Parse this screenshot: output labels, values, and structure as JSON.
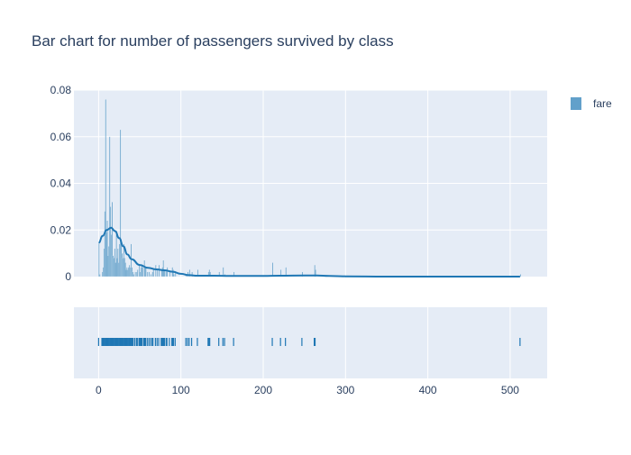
{
  "chart_data": {
    "type": "histogram",
    "title": "Bar chart for number of passengers survived by class",
    "xlabel": "",
    "ylabel": "",
    "legend": {
      "position": "top-right",
      "entries": [
        "fare"
      ]
    },
    "grid": true,
    "xlim": [
      -30,
      545
    ],
    "ylim": [
      0,
      0.08
    ],
    "x_ticks": [
      0,
      100,
      200,
      300,
      400,
      500
    ],
    "y_ticks": [
      0,
      0.02,
      0.04,
      0.06,
      0.08
    ],
    "y_tick_labels": [
      "0",
      "0.02",
      "0.04",
      "0.06",
      "0.08"
    ],
    "series": [
      {
        "name": "fare",
        "kind": "histogram",
        "color": "#1f77b4",
        "bin_width": 1,
        "bins": [
          [
            0,
            0.014
          ],
          [
            1,
            0.001
          ],
          [
            4,
            0.002
          ],
          [
            5,
            0.004
          ],
          [
            6,
            0.012
          ],
          [
            7,
            0.028
          ],
          [
            8,
            0.076
          ],
          [
            9,
            0.019
          ],
          [
            10,
            0.024
          ],
          [
            11,
            0.009
          ],
          [
            12,
            0.013
          ],
          [
            13,
            0.06
          ],
          [
            14,
            0.03
          ],
          [
            15,
            0.018
          ],
          [
            16,
            0.032
          ],
          [
            17,
            0.009
          ],
          [
            18,
            0.008
          ],
          [
            19,
            0.012
          ],
          [
            20,
            0.006
          ],
          [
            21,
            0.018
          ],
          [
            22,
            0.008
          ],
          [
            23,
            0.012
          ],
          [
            24,
            0.006
          ],
          [
            25,
            0.014
          ],
          [
            26,
            0.063
          ],
          [
            27,
            0.016
          ],
          [
            28,
            0.01
          ],
          [
            29,
            0.008
          ],
          [
            30,
            0.014
          ],
          [
            31,
            0.008
          ],
          [
            32,
            0.006
          ],
          [
            33,
            0.003
          ],
          [
            34,
            0.004
          ],
          [
            35,
            0.003
          ],
          [
            36,
            0.004
          ],
          [
            37,
            0.005
          ],
          [
            38,
            0.004
          ],
          [
            39,
            0.014
          ],
          [
            40,
            0.004
          ],
          [
            41,
            0.002
          ],
          [
            42,
            0.001
          ],
          [
            44,
            0.002
          ],
          [
            46,
            0.002
          ],
          [
            47,
            0.003
          ],
          [
            49,
            0.005
          ],
          [
            50,
            0.002
          ],
          [
            51,
            0.004
          ],
          [
            52,
            0.005
          ],
          [
            53,
            0.004
          ],
          [
            55,
            0.007
          ],
          [
            56,
            0.004
          ],
          [
            57,
            0.004
          ],
          [
            59,
            0.002
          ],
          [
            61,
            0.002
          ],
          [
            63,
            0.001
          ],
          [
            65,
            0.002
          ],
          [
            66,
            0.003
          ],
          [
            69,
            0.005
          ],
          [
            71,
            0.003
          ],
          [
            73,
            0.005
          ],
          [
            76,
            0.003
          ],
          [
            77,
            0.004
          ],
          [
            78,
            0.007
          ],
          [
            79,
            0.003
          ],
          [
            80,
            0.003
          ],
          [
            82,
            0.003
          ],
          [
            83,
            0.004
          ],
          [
            86,
            0.002
          ],
          [
            89,
            0.004
          ],
          [
            90,
            0.003
          ],
          [
            91,
            0.001
          ],
          [
            93,
            0.002
          ],
          [
            106,
            0.001
          ],
          [
            108,
            0.002
          ],
          [
            110,
            0.003
          ],
          [
            113,
            0.002
          ],
          [
            120,
            0.003
          ],
          [
            133,
            0.002
          ],
          [
            134,
            0.003
          ],
          [
            135,
            0.002
          ],
          [
            146,
            0.002
          ],
          [
            151,
            0.004
          ],
          [
            153,
            0.001
          ],
          [
            164,
            0.002
          ],
          [
            211,
            0.006
          ],
          [
            221,
            0.003
          ],
          [
            227,
            0.004
          ],
          [
            247,
            0.002
          ],
          [
            262,
            0.005
          ],
          [
            263,
            0.003
          ],
          [
            512,
            0.001
          ]
        ]
      },
      {
        "name": "fare",
        "kind": "density",
        "color": "#1f77b4",
        "points": [
          [
            0,
            0.0145
          ],
          [
            5,
            0.0175
          ],
          [
            10,
            0.02
          ],
          [
            15,
            0.021
          ],
          [
            20,
            0.0195
          ],
          [
            25,
            0.0165
          ],
          [
            30,
            0.013
          ],
          [
            35,
            0.0095
          ],
          [
            40,
            0.0075
          ],
          [
            50,
            0.005
          ],
          [
            60,
            0.0038
          ],
          [
            70,
            0.0031
          ],
          [
            80,
            0.0027
          ],
          [
            90,
            0.0021
          ],
          [
            100,
            0.0012
          ],
          [
            110,
            0.0006
          ],
          [
            120,
            0.0004
          ],
          [
            140,
            0.0004
          ],
          [
            160,
            0.0003
          ],
          [
            200,
            0.0003
          ],
          [
            220,
            0.0004
          ],
          [
            250,
            0.0005
          ],
          [
            265,
            0.0005
          ],
          [
            280,
            0.0003
          ],
          [
            300,
            0.0001
          ],
          [
            350,
            0.0
          ],
          [
            400,
            0.0
          ],
          [
            450,
            0.0
          ],
          [
            512,
            0.0
          ]
        ]
      },
      {
        "name": "fare",
        "kind": "rug",
        "color": "#1f77b4",
        "x": [
          0,
          4,
          5,
          6,
          7,
          8,
          9,
          10,
          11,
          12,
          13,
          14,
          15,
          16,
          17,
          18,
          19,
          20,
          21,
          22,
          23,
          24,
          25,
          26,
          27,
          28,
          29,
          30,
          31,
          32,
          33,
          34,
          35,
          36,
          37,
          38,
          39,
          40,
          41,
          42,
          44,
          46,
          47,
          49,
          50,
          51,
          52,
          53,
          55,
          56,
          57,
          59,
          61,
          63,
          65,
          66,
          69,
          71,
          73,
          76,
          77,
          78,
          79,
          80,
          82,
          83,
          86,
          89,
          90,
          91,
          93,
          106,
          108,
          110,
          113,
          120,
          133,
          134,
          135,
          146,
          151,
          153,
          164,
          211,
          221,
          227,
          247,
          262,
          263,
          512
        ]
      }
    ]
  }
}
